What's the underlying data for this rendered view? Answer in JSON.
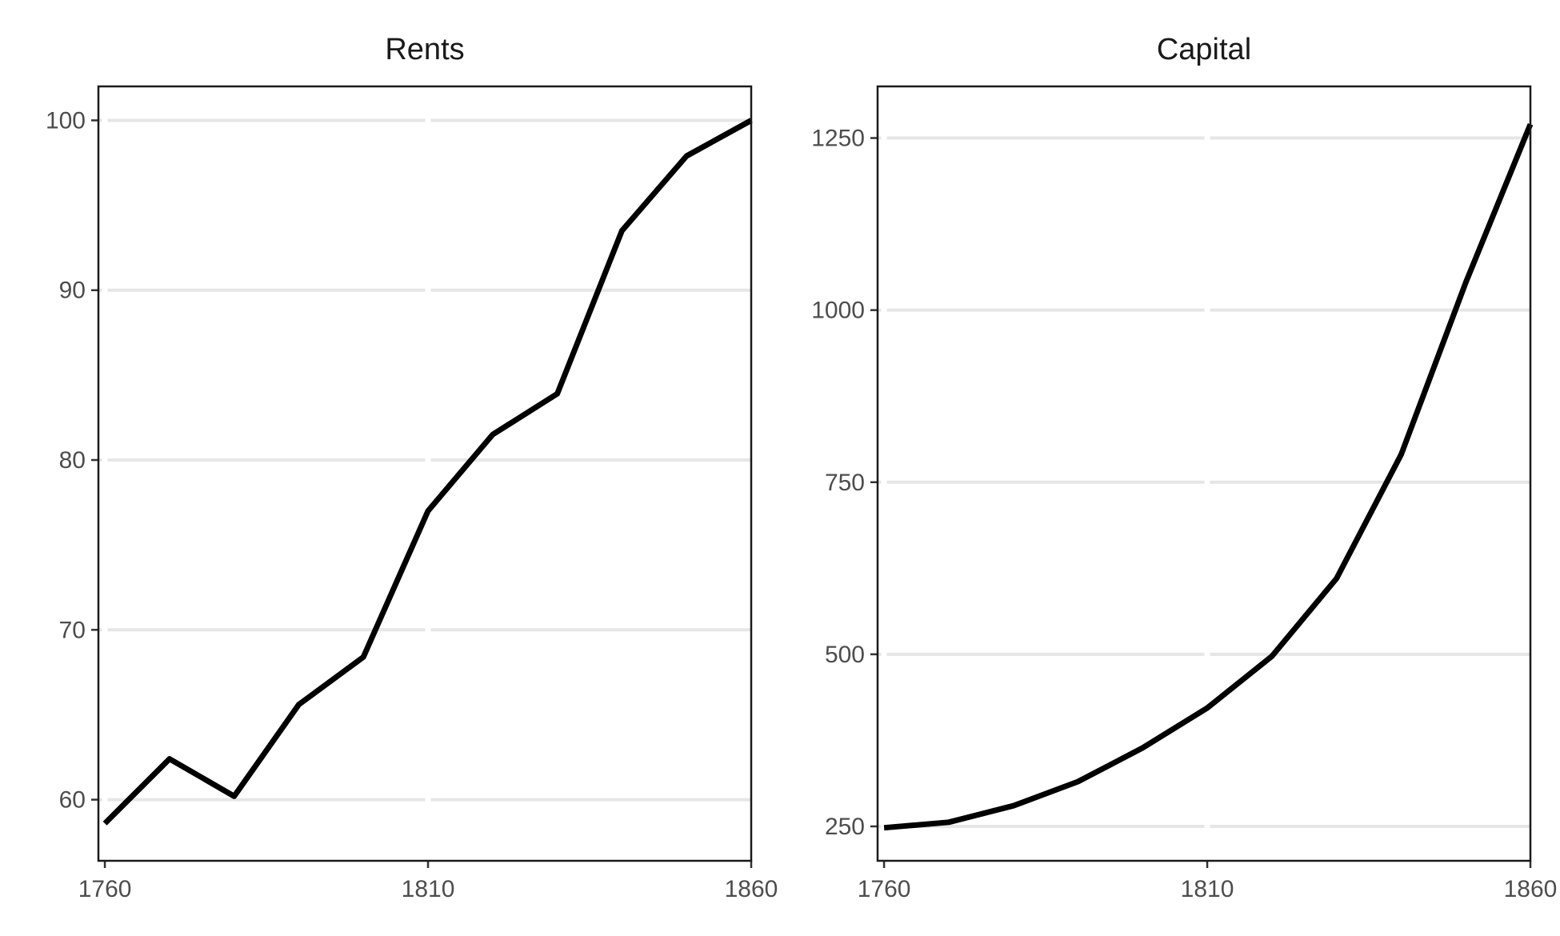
{
  "chart_data": [
    {
      "type": "line",
      "title": "Rents",
      "xlabel": "",
      "ylabel": "",
      "xlim": [
        1759,
        1860
      ],
      "ylim": [
        56.4,
        102
      ],
      "xticks": [
        1760,
        1810,
        1860
      ],
      "xtick_labels": [
        "1760",
        "1810",
        "1860"
      ],
      "yticks": [
        60,
        70,
        80,
        90,
        100
      ],
      "ytick_labels": [
        "60",
        "70",
        "80",
        "90",
        "100"
      ],
      "grid": "horizontal",
      "legend": "none",
      "color": "#000000",
      "series": [
        {
          "x": [
            1760,
            1770,
            1780,
            1790,
            1800,
            1810,
            1820,
            1830,
            1840,
            1850,
            1860
          ],
          "y": [
            58.6,
            62.4,
            60.2,
            65.6,
            68.4,
            77.0,
            81.5,
            83.9,
            93.5,
            97.9,
            100.0
          ]
        }
      ]
    },
    {
      "type": "line",
      "title": "Capital",
      "xlabel": "",
      "ylabel": "",
      "xlim": [
        1759,
        1860
      ],
      "ylim": [
        200,
        1325
      ],
      "xticks": [
        1760,
        1810,
        1860
      ],
      "xtick_labels": [
        "1760",
        "1810",
        "1860"
      ],
      "yticks": [
        250,
        500,
        750,
        1000,
        1250
      ],
      "ytick_labels": [
        "250",
        "500",
        "750",
        "1000",
        "1250"
      ],
      "grid": "horizontal",
      "legend": "none",
      "color": "#000000",
      "series": [
        {
          "x": [
            1760,
            1770,
            1780,
            1790,
            1800,
            1810,
            1820,
            1830,
            1840,
            1850,
            1860
          ],
          "y": [
            248,
            256,
            280,
            315,
            364,
            422,
            497,
            610,
            790,
            1040,
            1270
          ]
        }
      ]
    }
  ]
}
